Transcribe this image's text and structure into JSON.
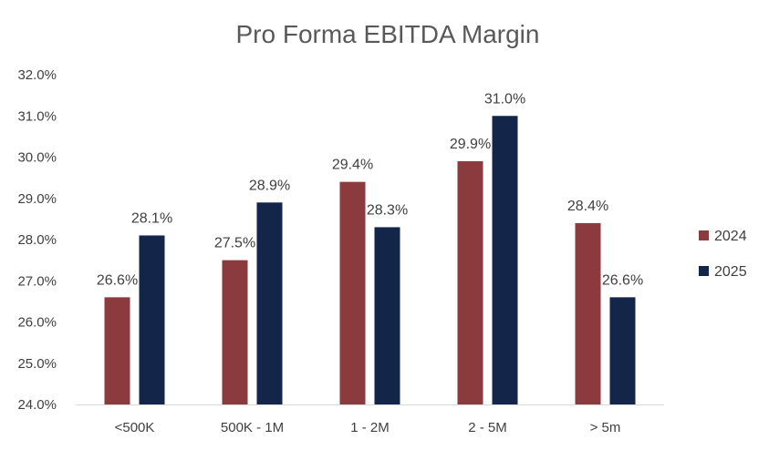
{
  "chart_data": {
    "type": "bar",
    "title": "Pro Forma EBITDA Margin",
    "xlabel": "",
    "ylabel": "",
    "categories": [
      "<500K",
      "500K - 1M",
      "1 - 2M",
      "2 - 5M",
      "> 5m"
    ],
    "series": [
      {
        "name": "2024",
        "color": "#8B3A3E",
        "values": [
          26.6,
          27.5,
          29.4,
          29.9,
          28.4
        ],
        "labels": [
          "26.6%",
          "27.5%",
          "29.4%",
          "29.9%",
          "28.4%"
        ]
      },
      {
        "name": "2025",
        "color": "#13264A",
        "values": [
          28.1,
          28.9,
          28.3,
          31.0,
          26.6
        ],
        "labels": [
          "28.1%",
          "28.9%",
          "28.3%",
          "31.0%",
          "26.6%"
        ]
      }
    ],
    "ylim": [
      24.0,
      32.0
    ],
    "yticks": [
      24.0,
      25.0,
      26.0,
      27.0,
      28.0,
      29.0,
      30.0,
      31.0,
      32.0
    ],
    "ytick_labels": [
      "24.0%",
      "25.0%",
      "26.0%",
      "27.0%",
      "28.0%",
      "29.0%",
      "30.0%",
      "31.0%",
      "32.0%"
    ],
    "grid": false,
    "legend_position": "right",
    "axis_color": "#D9D9D9"
  }
}
